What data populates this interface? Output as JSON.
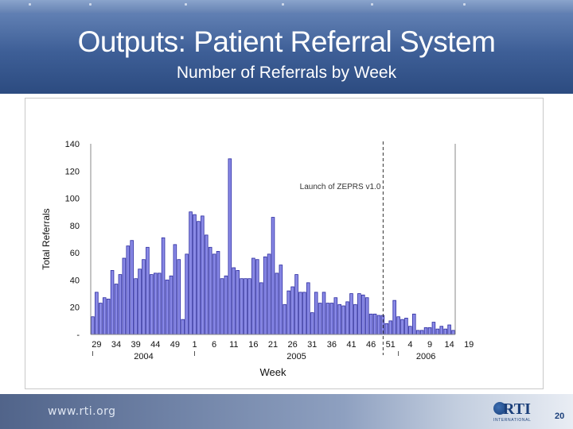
{
  "slide": {
    "title": "Outputs: Patient Referral System",
    "subtitle": "Number of Referrals by Week",
    "footer_url": "www.rti.org",
    "logo_text": "RTI",
    "logo_subtext": "INTERNATIONAL",
    "page_number": "20"
  },
  "colors": {
    "bar_fill": "#8a8ae6",
    "bar_stroke": "#2a2aa0",
    "header_blue": "#3e5f97"
  },
  "chart_data": {
    "type": "bar",
    "title": "",
    "xlabel": "Week",
    "ylabel": "Total Referrals",
    "ylim": [
      0,
      140
    ],
    "yticks": [
      {
        "value": 0,
        "label": "-"
      },
      {
        "value": 20,
        "label": "20"
      },
      {
        "value": 40,
        "label": "40"
      },
      {
        "value": 60,
        "label": "60"
      },
      {
        "value": 80,
        "label": "80"
      },
      {
        "value": 100,
        "label": "100"
      },
      {
        "value": 120,
        "label": "120"
      },
      {
        "value": 140,
        "label": "140"
      }
    ],
    "grid": false,
    "start_week": 28,
    "week_tick_labels": [
      "29",
      "34",
      "39",
      "44",
      "49",
      "1",
      "6",
      "11",
      "16",
      "21",
      "26",
      "31",
      "36",
      "41",
      "46",
      "51",
      "4",
      "9",
      "14",
      "19"
    ],
    "year_labels": [
      "2004",
      "2005",
      "2006"
    ],
    "annotation": {
      "text": "Launch of ZEPRS v1.0",
      "line_style": "dashed"
    },
    "values": [
      13,
      31,
      23,
      27,
      26,
      47,
      37,
      44,
      56,
      65,
      69,
      41,
      48,
      55,
      64,
      44,
      45,
      45,
      71,
      40,
      43,
      66,
      55,
      11,
      59,
      90,
      88,
      83,
      87,
      73,
      64,
      59,
      61,
      41,
      43,
      129,
      49,
      47,
      41,
      41,
      41,
      56,
      55,
      38,
      57,
      59,
      86,
      45,
      51,
      22,
      32,
      35,
      44,
      31,
      31,
      38,
      16,
      31,
      23,
      31,
      23,
      23,
      27,
      22,
      21,
      24,
      30,
      22,
      30,
      29,
      27,
      15,
      15,
      14,
      14,
      8,
      10,
      25,
      13,
      11,
      12,
      6,
      15,
      3,
      3,
      5,
      5,
      9,
      4,
      6,
      4,
      7,
      3
    ]
  }
}
